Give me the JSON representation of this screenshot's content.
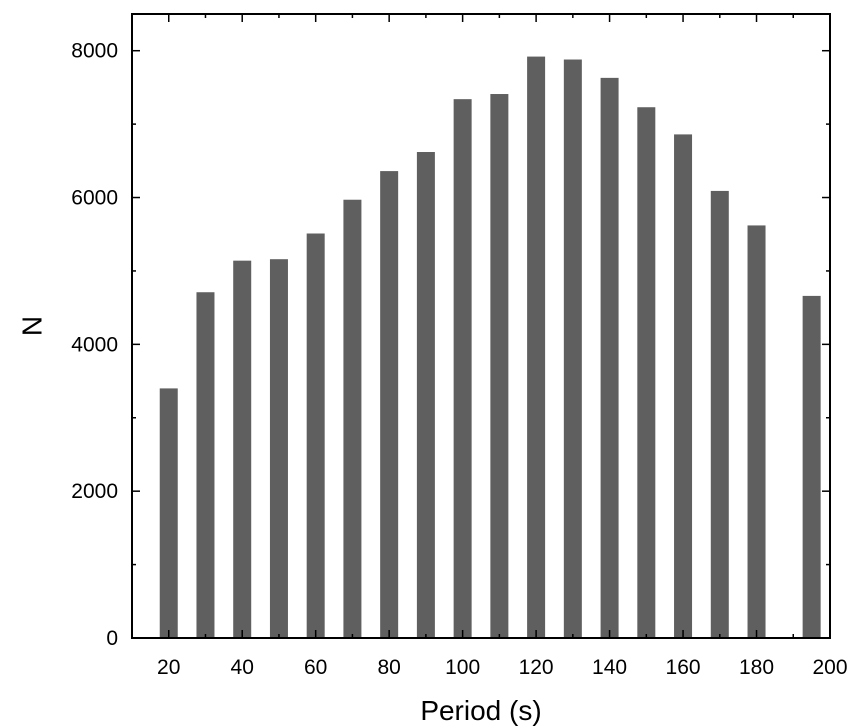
{
  "chart_data": {
    "type": "bar",
    "xlabel": "Period (s)",
    "ylabel": "N",
    "x": [
      20,
      30,
      40,
      50,
      60,
      70,
      80,
      90,
      100,
      110,
      120,
      130,
      140,
      150,
      160,
      170,
      180,
      195
    ],
    "values": [
      3400,
      4710,
      5140,
      5160,
      5510,
      5970,
      6360,
      6620,
      7340,
      7410,
      7920,
      7880,
      7630,
      7230,
      6860,
      6090,
      5620,
      4660
    ],
    "xlim": [
      10,
      200
    ],
    "ylim": [
      0,
      8500
    ],
    "xticks": [
      20,
      40,
      60,
      80,
      100,
      120,
      140,
      160,
      180,
      200
    ],
    "xticks_minor": [
      30,
      50,
      70,
      90,
      110,
      130,
      150,
      170,
      190
    ],
    "yticks": [
      0,
      2000,
      4000,
      6000,
      8000
    ],
    "yticks_minor": [
      1000,
      3000,
      5000,
      7000
    ],
    "grid": false,
    "legend": "none",
    "bar_color": "#5f5f5f"
  }
}
